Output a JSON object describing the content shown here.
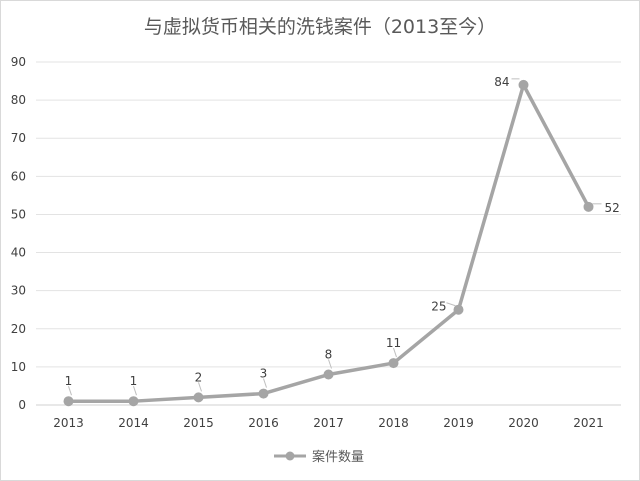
{
  "chart_data": {
    "type": "line",
    "title": "与虚拟货币相关的洗钱案件（2013至今）",
    "xlabel": "",
    "ylabel": "",
    "categories": [
      "2013",
      "2014",
      "2015",
      "2016",
      "2017",
      "2018",
      "2019",
      "2020",
      "2021"
    ],
    "series": [
      {
        "name": "案件数量",
        "values": [
          1,
          1,
          2,
          3,
          8,
          11,
          25,
          84,
          52
        ],
        "color": "#a5a5a5"
      }
    ],
    "ylim": [
      0,
      90
    ],
    "yticks": [
      0,
      10,
      20,
      30,
      40,
      50,
      60,
      70,
      80,
      90
    ],
    "grid": true,
    "legend": "bottom",
    "data_labels": true
  }
}
